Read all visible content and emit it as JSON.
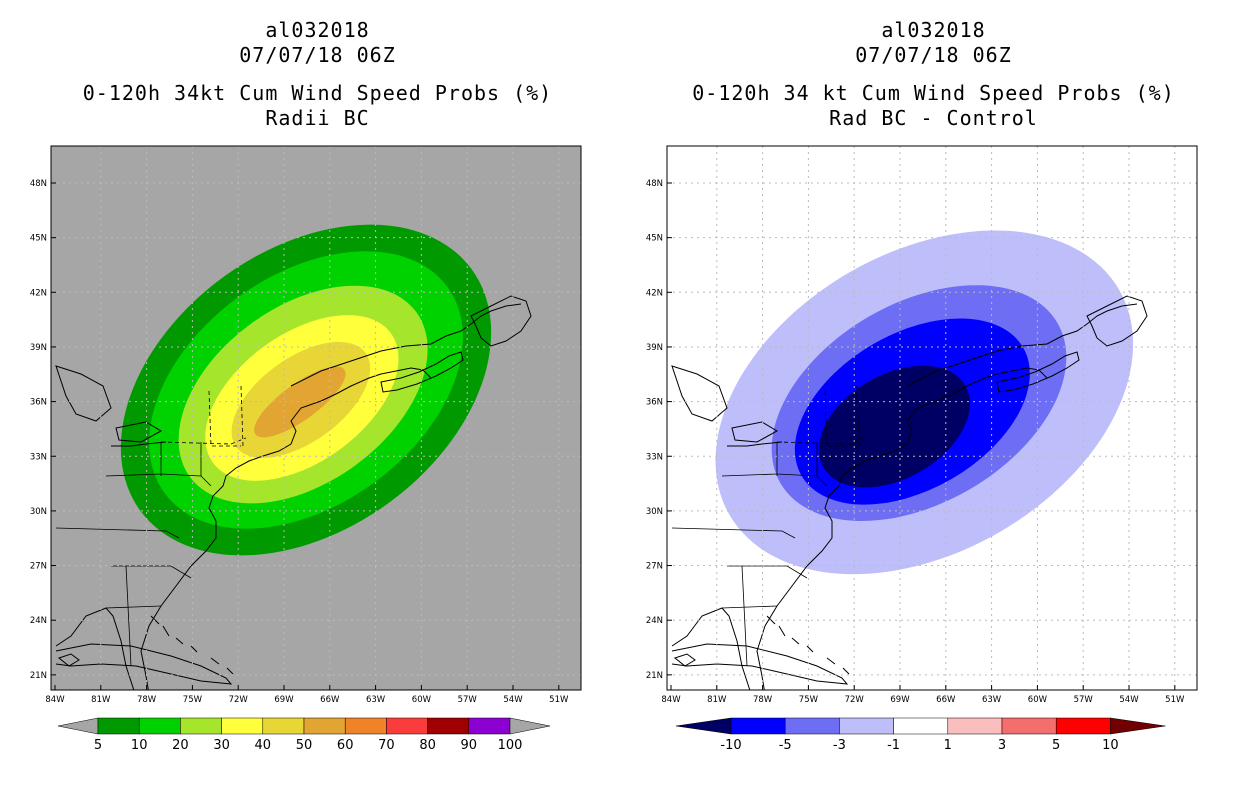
{
  "left_panel": {
    "title_lines": [
      "al032018",
      "07/07/18 06Z",
      "0-120h 34kt Cum Wind Speed Probs (%)",
      "Radii BC"
    ],
    "legend": {
      "labels": [
        "5",
        "10",
        "20",
        "30",
        "40",
        "50",
        "60",
        "70",
        "80",
        "90",
        "100"
      ],
      "colors": [
        "#009a00",
        "#00d200",
        "#a5e62d",
        "#ffff3c",
        "#e8d637",
        "#e2a532",
        "#f08228",
        "#fa3c3c",
        "#a00000",
        "#8c00d2"
      ]
    }
  },
  "right_panel": {
    "title_lines": [
      "al032018",
      "07/07/18 06Z",
      "0-120h 34 kt Cum Wind Speed Probs (%)",
      "Rad BC - Control"
    ],
    "legend": {
      "labels": [
        "-10",
        "-5",
        "-3",
        "-1",
        "1",
        "3",
        "5",
        "10"
      ],
      "colors": [
        "#000064",
        "#0000ff",
        "#6e6ef5",
        "#bebefa",
        "#ffffff",
        "#fabebe",
        "#f56e6e",
        "#ff0000",
        "#730000"
      ]
    }
  },
  "axes": {
    "lat_labels": [
      "48N",
      "45N",
      "42N",
      "39N",
      "36N",
      "33N",
      "30N",
      "27N",
      "24N",
      "21N"
    ],
    "lon_labels": [
      "84W",
      "81W",
      "78W",
      "75W",
      "72W",
      "69W",
      "66W",
      "63W",
      "60W",
      "57W",
      "54W",
      "51W"
    ]
  },
  "colors": {
    "left_background": "#a6a6a6",
    "grid": "#bbbbbb"
  }
}
